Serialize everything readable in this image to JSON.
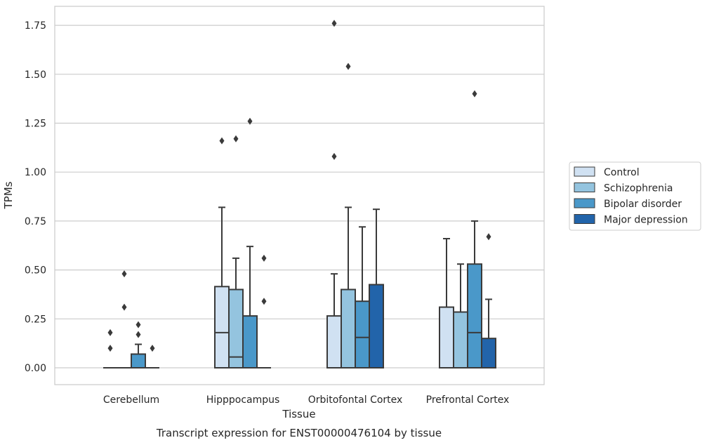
{
  "caption": "Transcript expression for ENST00000476104 by tissue",
  "chart_data": {
    "type": "box",
    "xlabel": "Tissue",
    "ylabel": "TPMs",
    "ylim": [
      -0.085,
      1.85
    ],
    "yticks": [
      "0.00",
      "0.25",
      "0.50",
      "0.75",
      "1.00",
      "1.25",
      "1.50",
      "1.75"
    ],
    "grid": true,
    "legend_position": "right",
    "categories": [
      "Cerebellum",
      "Hipppocampus",
      "Orbitofontal Cortex",
      "Prefrontal Cortex"
    ],
    "colors": [
      "#d0e1f2",
      "#94c4df",
      "#4a98c9",
      "#2264aa"
    ],
    "series": [
      {
        "name": "Control",
        "boxes": [
          {
            "whislo": 0,
            "q1": 0,
            "med": 0,
            "q3": 0,
            "whishi": 0,
            "fliers": [
              0.1,
              0.18
            ]
          },
          {
            "whislo": 0,
            "q1": 0,
            "med": 0.18,
            "q3": 0.415,
            "whishi": 0.82,
            "fliers": [
              1.16
            ]
          },
          {
            "whislo": 0,
            "q1": 0,
            "med": 0,
            "q3": 0.265,
            "whishi": 0.48,
            "fliers": [
              1.08,
              1.76
            ]
          },
          {
            "whislo": 0,
            "q1": 0,
            "med": 0,
            "q3": 0.31,
            "whishi": 0.66,
            "fliers": []
          }
        ]
      },
      {
        "name": "Schizophrenia",
        "boxes": [
          {
            "whislo": 0,
            "q1": 0,
            "med": 0,
            "q3": 0,
            "whishi": 0,
            "fliers": [
              0.31,
              0.48
            ]
          },
          {
            "whislo": 0,
            "q1": 0,
            "med": 0.055,
            "q3": 0.4,
            "whishi": 0.56,
            "fliers": [
              1.17
            ]
          },
          {
            "whislo": 0,
            "q1": 0,
            "med": 0,
            "q3": 0.4,
            "whishi": 0.82,
            "fliers": [
              1.54
            ]
          },
          {
            "whislo": 0,
            "q1": 0,
            "med": 0,
            "q3": 0.285,
            "whishi": 0.53,
            "fliers": []
          }
        ]
      },
      {
        "name": "Bipolar disorder",
        "boxes": [
          {
            "whislo": 0,
            "q1": 0,
            "med": 0,
            "q3": 0.07,
            "whishi": 0.12,
            "fliers": [
              0.17,
              0.22
            ]
          },
          {
            "whislo": 0,
            "q1": 0,
            "med": 0,
            "q3": 0.265,
            "whishi": 0.62,
            "fliers": [
              1.26
            ]
          },
          {
            "whislo": 0,
            "q1": 0,
            "med": 0.155,
            "q3": 0.34,
            "whishi": 0.72,
            "fliers": []
          },
          {
            "whislo": 0,
            "q1": 0,
            "med": 0.18,
            "q3": 0.53,
            "whishi": 0.75,
            "fliers": [
              1.4
            ]
          }
        ]
      },
      {
        "name": "Major depression",
        "boxes": [
          {
            "whislo": 0,
            "q1": 0,
            "med": 0,
            "q3": 0,
            "whishi": 0,
            "fliers": [
              0.1
            ]
          },
          {
            "whislo": 0,
            "q1": 0,
            "med": 0,
            "q3": 0,
            "whishi": 0,
            "fliers": [
              0.34,
              0.56
            ]
          },
          {
            "whislo": 0,
            "q1": 0,
            "med": 0,
            "q3": 0.425,
            "whishi": 0.81,
            "fliers": []
          },
          {
            "whislo": 0,
            "q1": 0,
            "med": 0,
            "q3": 0.15,
            "whishi": 0.35,
            "fliers": [
              0.67
            ]
          }
        ]
      }
    ]
  }
}
